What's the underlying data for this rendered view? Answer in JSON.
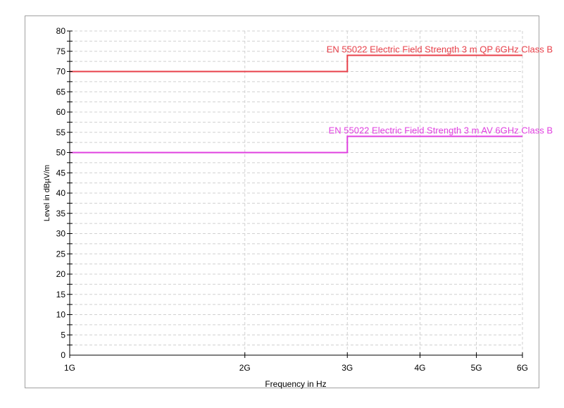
{
  "chart_data": {
    "type": "line",
    "xlabel": "Frequency in Hz",
    "ylabel": "Level in dBµV/m",
    "x_scale": "log",
    "xlim": [
      1000000000.0,
      6000000000.0
    ],
    "ylim": [
      0,
      80
    ],
    "grid": true,
    "x_ticks": [
      {
        "value": 1000000000.0,
        "label": "1G"
      },
      {
        "value": 2000000000.0,
        "label": "2G"
      },
      {
        "value": 3000000000.0,
        "label": "3G"
      },
      {
        "value": 4000000000.0,
        "label": "4G"
      },
      {
        "value": 5000000000.0,
        "label": "5G"
      },
      {
        "value": 6000000000.0,
        "label": "6G"
      }
    ],
    "y_ticks": [
      "0",
      "5",
      "10",
      "15",
      "20",
      "25",
      "30",
      "35",
      "40",
      "45",
      "50",
      "55",
      "60",
      "65",
      "70",
      "75",
      "80"
    ],
    "series": [
      {
        "name": "EN 55022 Electric Field Strength 3 m QP 6GHz Class B",
        "color": "#e8404a",
        "x": [
          1000000000.0,
          3000000000.0,
          3000000000.0,
          6000000000.0
        ],
        "y": [
          70,
          70,
          74,
          74
        ]
      },
      {
        "name": "EN 55022 Electric Field Strength 3 m AV 6GHz Class B",
        "color": "#e040e0",
        "x": [
          1000000000.0,
          3000000000.0,
          3000000000.0,
          6000000000.0
        ],
        "y": [
          50,
          50,
          54,
          54
        ]
      }
    ]
  }
}
